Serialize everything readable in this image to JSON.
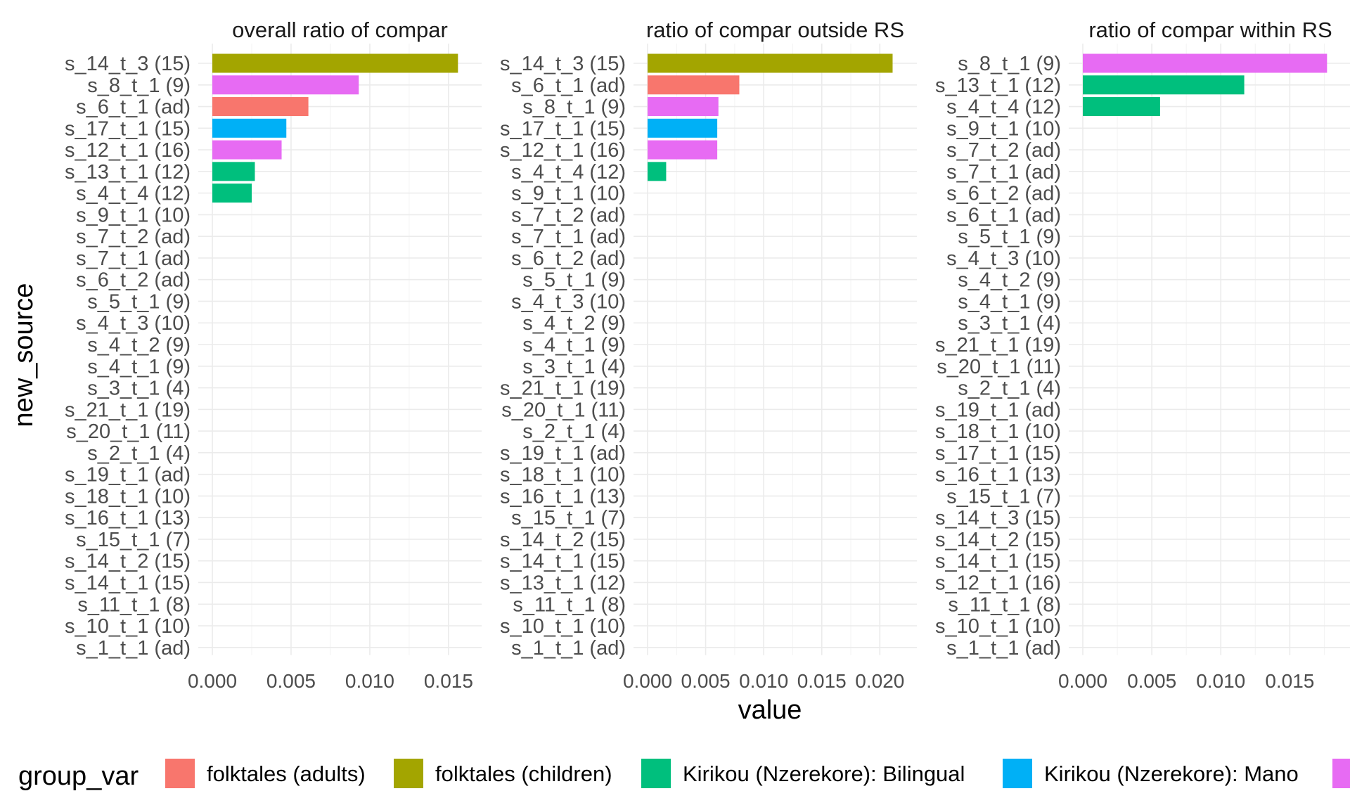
{
  "chart_data": {
    "type": "bar",
    "orientation": "horizontal",
    "xlabel": "value",
    "ylabel": "new_source",
    "legend": {
      "title": "group_var",
      "placement": "bottom",
      "entries": [
        {
          "name": "folktales (adults)",
          "color": "#F8766D"
        },
        {
          "name": "folktales (children)",
          "color": "#A3A500"
        },
        {
          "name": "Kirikou (Nzerekore): Bilingual",
          "color": "#00BF7D"
        },
        {
          "name": "Kirikou (Nzerekore): Mano",
          "color": "#00B0F6"
        },
        {
          "name": "",
          "color": "#E76BF3"
        }
      ]
    },
    "grid": true,
    "panels": [
      {
        "title": "overall ratio of compar",
        "xlim": [
          0,
          0.0163
        ],
        "xticks": [
          "0.000",
          "0.005",
          "0.010",
          "0.015"
        ],
        "xtick_values": [
          0,
          0.005,
          0.01,
          0.015
        ],
        "categories": [
          "s_14_t_3 (15)",
          "s_8_t_1 (9)",
          "s_6_t_1 (ad)",
          "s_17_t_1 (15)",
          "s_12_t_1 (16)",
          "s_13_t_1 (12)",
          "s_4_t_4 (12)",
          "s_9_t_1 (10)",
          "s_7_t_2 (ad)",
          "s_7_t_1 (ad)",
          "s_6_t_2 (ad)",
          "s_5_t_1 (9)",
          "s_4_t_3 (10)",
          "s_4_t_2 (9)",
          "s_4_t_1 (9)",
          "s_3_t_1 (4)",
          "s_21_t_1 (19)",
          "s_20_t_1 (11)",
          "s_2_t_1 (4)",
          "s_19_t_1 (ad)",
          "s_18_t_1 (10)",
          "s_16_t_1 (13)",
          "s_15_t_1 (7)",
          "s_14_t_2 (15)",
          "s_14_t_1 (15)",
          "s_11_t_1 (8)",
          "s_10_t_1 (10)",
          "s_1_t_1 (ad)"
        ],
        "values": [
          0.0156,
          0.0093,
          0.0061,
          0.0047,
          0.0044,
          0.0027,
          0.0025,
          0,
          0,
          0,
          0,
          0,
          0,
          0,
          0,
          0,
          0,
          0,
          0,
          0,
          0,
          0,
          0,
          0,
          0,
          0,
          0,
          0
        ],
        "groups": [
          1,
          4,
          0,
          3,
          4,
          2,
          2,
          0,
          0,
          0,
          0,
          0,
          0,
          0,
          0,
          0,
          0,
          0,
          0,
          0,
          0,
          0,
          0,
          0,
          0,
          0,
          0,
          0
        ]
      },
      {
        "title": "ratio of compar outside RS",
        "xlim": [
          0,
          0.0221
        ],
        "xticks": [
          "0.000",
          "0.005",
          "0.010",
          "0.015",
          "0.020"
        ],
        "xtick_values": [
          0,
          0.005,
          0.01,
          0.015,
          0.02
        ],
        "categories": [
          "s_14_t_3 (15)",
          "s_6_t_1 (ad)",
          "s_8_t_1 (9)",
          "s_17_t_1 (15)",
          "s_12_t_1 (16)",
          "s_4_t_4 (12)",
          "s_9_t_1 (10)",
          "s_7_t_2 (ad)",
          "s_7_t_1 (ad)",
          "s_6_t_2 (ad)",
          "s_5_t_1 (9)",
          "s_4_t_3 (10)",
          "s_4_t_2 (9)",
          "s_4_t_1 (9)",
          "s_3_t_1 (4)",
          "s_21_t_1 (19)",
          "s_20_t_1 (11)",
          "s_2_t_1 (4)",
          "s_19_t_1 (ad)",
          "s_18_t_1 (10)",
          "s_16_t_1 (13)",
          "s_15_t_1 (7)",
          "s_14_t_2 (15)",
          "s_14_t_1 (15)",
          "s_13_t_1 (12)",
          "s_11_t_1 (8)",
          "s_10_t_1 (10)",
          "s_1_t_1 (ad)"
        ],
        "values": [
          0.0211,
          0.0079,
          0.0061,
          0.006,
          0.006,
          0.0016,
          0,
          0,
          0,
          0,
          0,
          0,
          0,
          0,
          0,
          0,
          0,
          0,
          0,
          0,
          0,
          0,
          0,
          0,
          0,
          0,
          0,
          0
        ],
        "groups": [
          1,
          0,
          4,
          3,
          4,
          2,
          0,
          0,
          0,
          0,
          0,
          0,
          0,
          0,
          0,
          0,
          0,
          0,
          0,
          0,
          0,
          0,
          0,
          0,
          0,
          0,
          0,
          0
        ]
      },
      {
        "title": "ratio of compar within RS",
        "xlim": [
          0,
          0.0186
        ],
        "xticks": [
          "0.000",
          "0.005",
          "0.010",
          "0.015"
        ],
        "xtick_values": [
          0,
          0.005,
          0.01,
          0.015
        ],
        "categories": [
          "s_8_t_1 (9)",
          "s_13_t_1 (12)",
          "s_4_t_4 (12)",
          "s_9_t_1 (10)",
          "s_7_t_2 (ad)",
          "s_7_t_1 (ad)",
          "s_6_t_2 (ad)",
          "s_6_t_1 (ad)",
          "s_5_t_1 (9)",
          "s_4_t_3 (10)",
          "s_4_t_2 (9)",
          "s_4_t_1 (9)",
          "s_3_t_1 (4)",
          "s_21_t_1 (19)",
          "s_20_t_1 (11)",
          "s_2_t_1 (4)",
          "s_19_t_1 (ad)",
          "s_18_t_1 (10)",
          "s_17_t_1 (15)",
          "s_16_t_1 (13)",
          "s_15_t_1 (7)",
          "s_14_t_3 (15)",
          "s_14_t_2 (15)",
          "s_14_t_1 (15)",
          "s_12_t_1 (16)",
          "s_11_t_1 (8)",
          "s_10_t_1 (10)",
          "s_1_t_1 (ad)"
        ],
        "values": [
          0.0177,
          0.0117,
          0.0056,
          0,
          0,
          0,
          0,
          0,
          0,
          0,
          0,
          0,
          0,
          0,
          0,
          0,
          0,
          0,
          0,
          0,
          0,
          0,
          0,
          0,
          0,
          0,
          0,
          0
        ],
        "groups": [
          4,
          2,
          2,
          0,
          0,
          0,
          0,
          0,
          0,
          0,
          0,
          0,
          0,
          0,
          0,
          0,
          0,
          0,
          0,
          0,
          0,
          0,
          0,
          0,
          0,
          0,
          0,
          0
        ]
      }
    ]
  }
}
